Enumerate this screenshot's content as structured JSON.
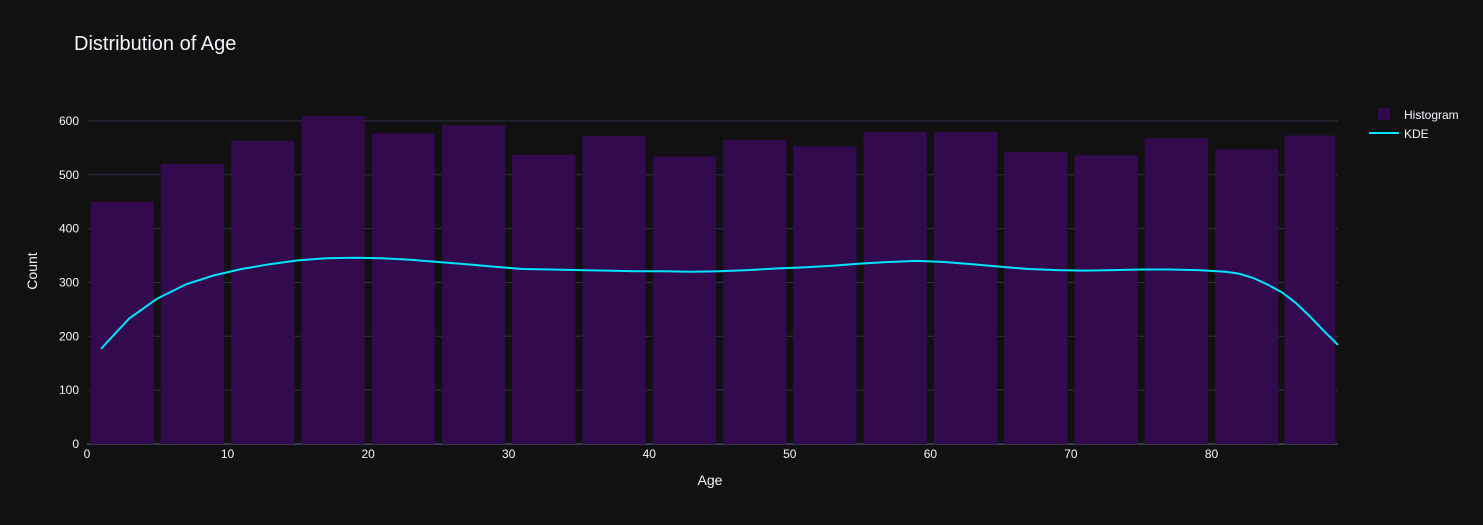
{
  "chart_data": {
    "type": "bar",
    "title": "Distribution of Age",
    "xlabel": "Age",
    "ylabel": "Count",
    "xlim": [
      0,
      89
    ],
    "ylim": [
      0,
      650
    ],
    "x_ticks": [
      0,
      10,
      20,
      30,
      40,
      50,
      60,
      70,
      80
    ],
    "y_ticks": [
      0,
      100,
      200,
      300,
      400,
      500,
      600
    ],
    "grid": true,
    "legend_position": "top-right",
    "colors": {
      "background": "#111111",
      "grid": "#283442",
      "bar": "#330a4d",
      "line": "#00e5ff",
      "text": "#f2f5fa"
    },
    "series": [
      {
        "name": "Histogram",
        "type": "bar",
        "bin_width": 5,
        "bin_starts": [
          0,
          5,
          10,
          15,
          20,
          25,
          30,
          35,
          40,
          45,
          50,
          55,
          60,
          65,
          70,
          75,
          80,
          85
        ],
        "values": [
          450,
          520,
          563,
          609,
          577,
          592,
          537,
          572,
          534,
          565,
          553,
          580,
          580,
          542,
          536,
          568,
          547,
          573
        ]
      },
      {
        "name": "KDE",
        "type": "line",
        "x": [
          1,
          3,
          5,
          7,
          9,
          11,
          13,
          15,
          17,
          19,
          21,
          23,
          25,
          27,
          29,
          31,
          33,
          35,
          37,
          39,
          41,
          43,
          45,
          47,
          49,
          51,
          53,
          55,
          57,
          59,
          61,
          63,
          65,
          67,
          69,
          71,
          73,
          75,
          77,
          79,
          81,
          82,
          83,
          84,
          85,
          86,
          87,
          88,
          89
        ],
        "y": [
          177,
          233,
          270,
          296,
          313,
          325,
          334,
          341,
          345,
          346,
          345,
          342,
          338,
          334,
          329,
          325,
          324,
          323,
          322,
          321,
          321,
          320,
          321,
          323,
          326,
          328,
          331,
          335,
          338,
          340,
          338,
          334,
          329,
          325,
          323,
          322,
          323,
          324,
          324,
          323,
          320,
          316,
          308,
          296,
          282,
          262,
          237,
          210,
          184
        ]
      }
    ]
  }
}
